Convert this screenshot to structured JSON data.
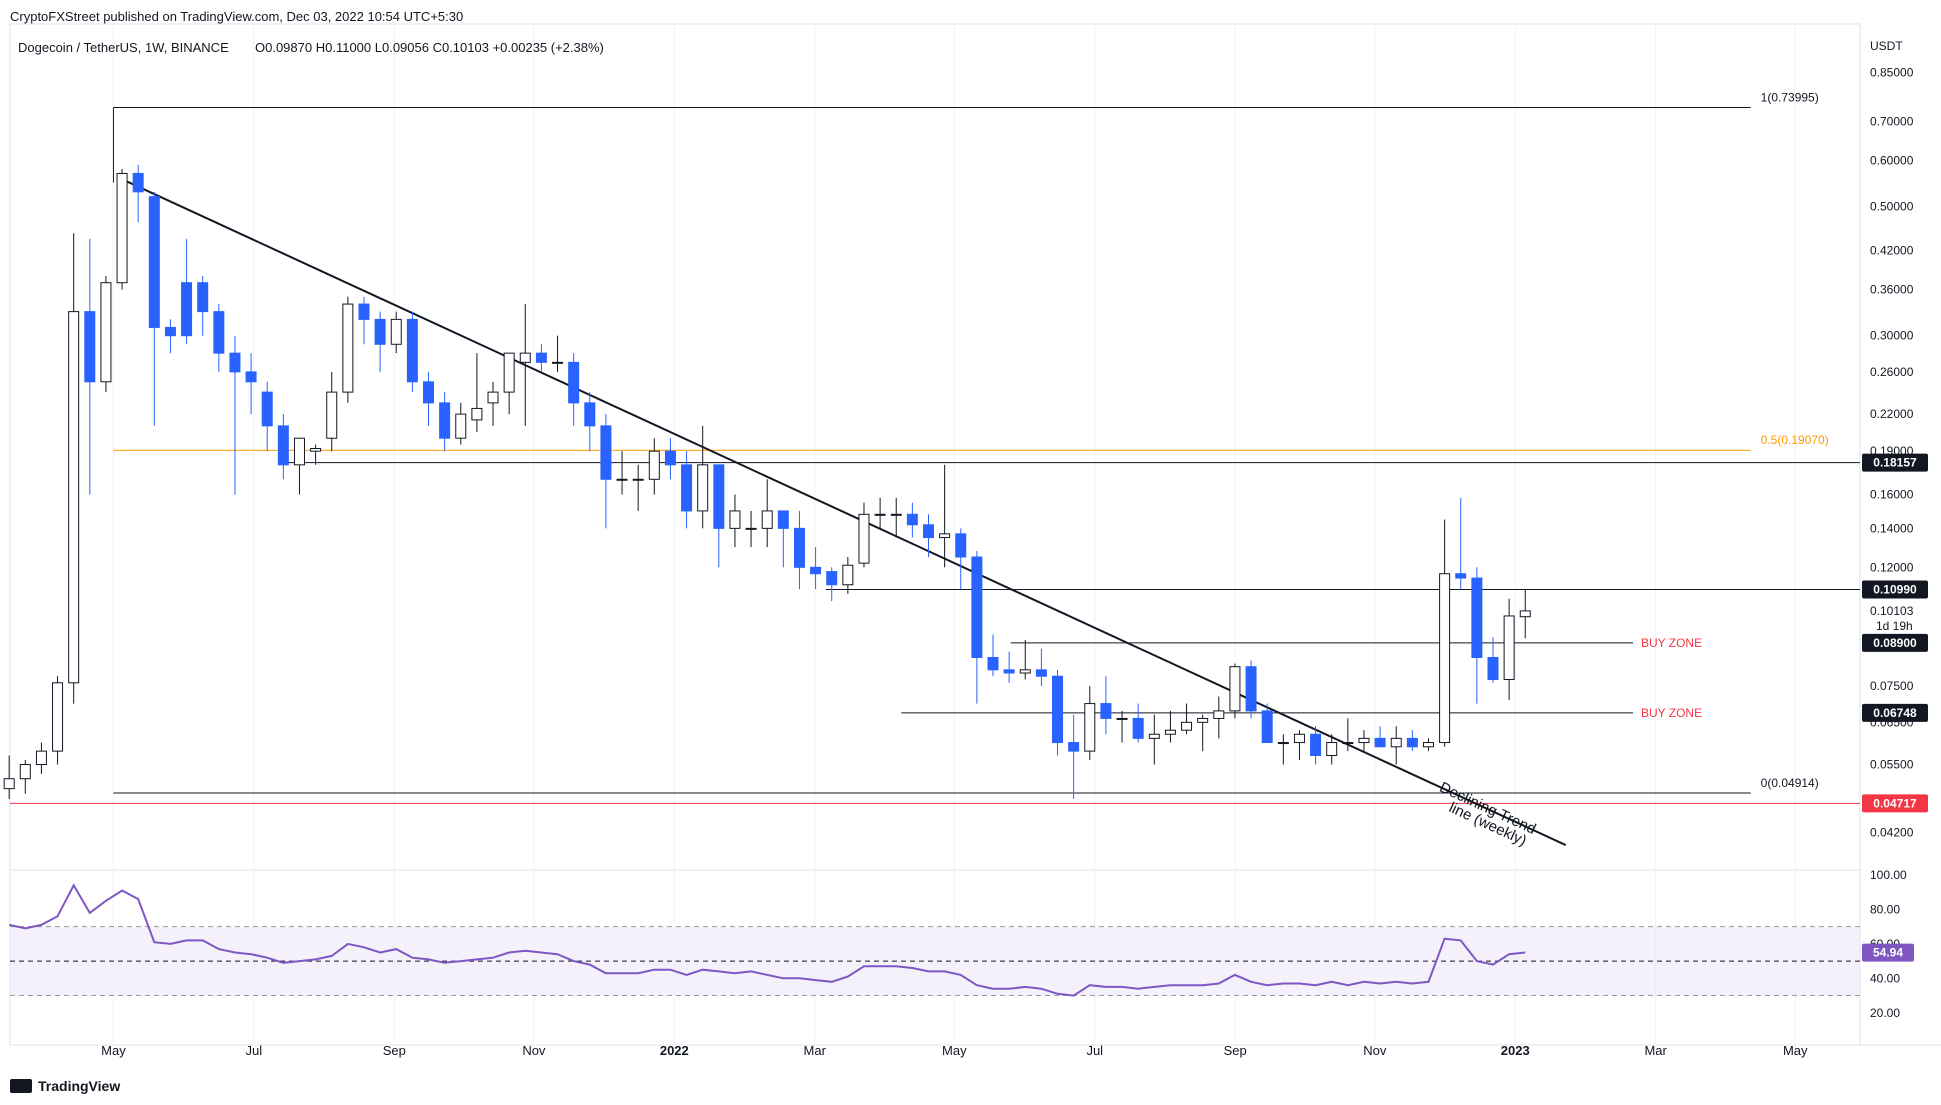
{
  "header": {
    "published": "CryptoFXStreet published on TradingView.com, Dec 03, 2022 10:54 UTC+5:30",
    "symbol": "Dogecoin / TetherUS, 1W, BINANCE",
    "ohlc": "O0.09870 H0.11000 L0.09056 C0.10103 +0.00235 (+2.38%)"
  },
  "footer": {
    "brand": "TradingView"
  },
  "chart_data": {
    "type": "candlestick",
    "currency_label": "USDT",
    "scale": "log",
    "ylim": [
      0.038,
      0.9
    ],
    "price_ticks": [
      "0.85000",
      "0.70000",
      "0.60000",
      "0.50000",
      "0.42000",
      "0.36000",
      "0.30000",
      "0.26000",
      "0.22000",
      "0.19000",
      "0.16000",
      "0.14000",
      "0.12000",
      "0.10103",
      "0.07500",
      "0.06500",
      "0.05500",
      "0.04200"
    ],
    "time_labels": [
      {
        "label": "May",
        "x": 2021.333
      },
      {
        "label": "Jul",
        "x": 2021.5
      },
      {
        "label": "Sep",
        "x": 2021.667
      },
      {
        "label": "Nov",
        "x": 2021.833
      },
      {
        "label": "2022",
        "x": 2022.0
      },
      {
        "label": "Mar",
        "x": 2022.167
      },
      {
        "label": "May",
        "x": 2022.333
      },
      {
        "label": "Jul",
        "x": 2022.5
      },
      {
        "label": "Sep",
        "x": 2022.667
      },
      {
        "label": "Nov",
        "x": 2022.833
      },
      {
        "label": "2023",
        "x": 2023.0
      },
      {
        "label": "Mar",
        "x": 2023.167
      },
      {
        "label": "May",
        "x": 2023.333
      }
    ],
    "xlim": [
      2021.21,
      2023.41
    ],
    "candles": {
      "start": 2021.209,
      "step": 0.01918,
      "ohlc": [
        [
          0.05,
          0.057,
          0.048,
          0.052
        ],
        [
          0.052,
          0.056,
          0.049,
          0.055
        ],
        [
          0.055,
          0.06,
          0.053,
          0.058
        ],
        [
          0.058,
          0.078,
          0.055,
          0.076
        ],
        [
          0.076,
          0.45,
          0.07,
          0.33
        ],
        [
          0.33,
          0.44,
          0.16,
          0.25
        ],
        [
          0.25,
          0.38,
          0.24,
          0.37
        ],
        [
          0.37,
          0.58,
          0.36,
          0.57
        ],
        [
          0.57,
          0.59,
          0.47,
          0.53
        ],
        [
          0.52,
          0.53,
          0.21,
          0.31
        ],
        [
          0.31,
          0.32,
          0.28,
          0.3
        ],
        [
          0.37,
          0.44,
          0.29,
          0.3
        ],
        [
          0.37,
          0.38,
          0.3,
          0.33
        ],
        [
          0.33,
          0.34,
          0.26,
          0.28
        ],
        [
          0.28,
          0.3,
          0.16,
          0.26
        ],
        [
          0.26,
          0.28,
          0.22,
          0.25
        ],
        [
          0.24,
          0.25,
          0.19,
          0.21
        ],
        [
          0.21,
          0.22,
          0.17,
          0.18
        ],
        [
          0.18,
          0.2,
          0.16,
          0.2
        ],
        [
          0.19,
          0.195,
          0.18,
          0.192
        ],
        [
          0.2,
          0.26,
          0.19,
          0.24
        ],
        [
          0.24,
          0.35,
          0.23,
          0.34
        ],
        [
          0.34,
          0.35,
          0.29,
          0.32
        ],
        [
          0.32,
          0.33,
          0.26,
          0.29
        ],
        [
          0.29,
          0.33,
          0.28,
          0.32
        ],
        [
          0.32,
          0.33,
          0.24,
          0.25
        ],
        [
          0.25,
          0.26,
          0.21,
          0.23
        ],
        [
          0.23,
          0.24,
          0.19,
          0.2
        ],
        [
          0.2,
          0.23,
          0.195,
          0.22
        ],
        [
          0.215,
          0.28,
          0.205,
          0.225
        ],
        [
          0.23,
          0.25,
          0.21,
          0.24
        ],
        [
          0.24,
          0.28,
          0.22,
          0.28
        ],
        [
          0.27,
          0.34,
          0.21,
          0.28
        ],
        [
          0.28,
          0.29,
          0.26,
          0.27
        ],
        [
          0.27,
          0.3,
          0.26,
          0.27
        ],
        [
          0.27,
          0.28,
          0.21,
          0.23
        ],
        [
          0.23,
          0.24,
          0.19,
          0.21
        ],
        [
          0.21,
          0.22,
          0.14,
          0.17
        ],
        [
          0.17,
          0.19,
          0.16,
          0.17
        ],
        [
          0.17,
          0.18,
          0.15,
          0.17
        ],
        [
          0.17,
          0.2,
          0.16,
          0.19
        ],
        [
          0.19,
          0.2,
          0.17,
          0.18
        ],
        [
          0.18,
          0.19,
          0.14,
          0.15
        ],
        [
          0.15,
          0.21,
          0.14,
          0.18
        ],
        [
          0.18,
          0.18,
          0.12,
          0.14
        ],
        [
          0.14,
          0.16,
          0.13,
          0.15
        ],
        [
          0.14,
          0.15,
          0.13,
          0.14
        ],
        [
          0.14,
          0.17,
          0.13,
          0.15
        ],
        [
          0.15,
          0.15,
          0.12,
          0.14
        ],
        [
          0.14,
          0.15,
          0.11,
          0.12
        ],
        [
          0.12,
          0.13,
          0.11,
          0.117
        ],
        [
          0.118,
          0.12,
          0.105,
          0.112
        ],
        [
          0.112,
          0.125,
          0.108,
          0.121
        ],
        [
          0.122,
          0.155,
          0.12,
          0.148
        ],
        [
          0.148,
          0.158,
          0.14,
          0.148
        ],
        [
          0.148,
          0.158,
          0.135,
          0.148
        ],
        [
          0.148,
          0.155,
          0.135,
          0.142
        ],
        [
          0.142,
          0.148,
          0.125,
          0.135
        ],
        [
          0.135,
          0.18,
          0.12,
          0.137
        ],
        [
          0.137,
          0.14,
          0.11,
          0.125
        ],
        [
          0.125,
          0.128,
          0.07,
          0.084
        ],
        [
          0.084,
          0.092,
          0.078,
          0.08
        ],
        [
          0.08,
          0.086,
          0.076,
          0.079
        ],
        [
          0.079,
          0.09,
          0.077,
          0.08
        ],
        [
          0.08,
          0.087,
          0.075,
          0.078
        ],
        [
          0.078,
          0.08,
          0.057,
          0.06
        ],
        [
          0.06,
          0.067,
          0.048,
          0.058
        ],
        [
          0.058,
          0.075,
          0.056,
          0.07
        ],
        [
          0.07,
          0.078,
          0.062,
          0.066
        ],
        [
          0.066,
          0.068,
          0.06,
          0.066
        ],
        [
          0.066,
          0.07,
          0.06,
          0.061
        ],
        [
          0.061,
          0.067,
          0.055,
          0.062
        ],
        [
          0.062,
          0.068,
          0.06,
          0.063
        ],
        [
          0.063,
          0.07,
          0.062,
          0.065
        ],
        [
          0.065,
          0.067,
          0.058,
          0.066
        ],
        [
          0.066,
          0.072,
          0.061,
          0.068
        ],
        [
          0.068,
          0.082,
          0.066,
          0.081
        ],
        [
          0.081,
          0.083,
          0.066,
          0.068
        ],
        [
          0.068,
          0.07,
          0.06,
          0.06
        ],
        [
          0.06,
          0.062,
          0.055,
          0.06
        ],
        [
          0.06,
          0.063,
          0.056,
          0.062
        ],
        [
          0.062,
          0.064,
          0.055,
          0.057
        ],
        [
          0.057,
          0.062,
          0.055,
          0.06
        ],
        [
          0.06,
          0.066,
          0.058,
          0.06
        ],
        [
          0.06,
          0.063,
          0.058,
          0.061
        ],
        [
          0.061,
          0.064,
          0.059,
          0.059
        ],
        [
          0.059,
          0.064,
          0.055,
          0.061
        ],
        [
          0.061,
          0.063,
          0.058,
          0.059
        ],
        [
          0.059,
          0.061,
          0.058,
          0.06
        ],
        [
          0.06,
          0.145,
          0.059,
          0.117
        ],
        [
          0.117,
          0.158,
          0.11,
          0.115
        ],
        [
          0.115,
          0.12,
          0.07,
          0.084
        ],
        [
          0.084,
          0.091,
          0.076,
          0.077
        ],
        [
          0.077,
          0.106,
          0.071,
          0.099
        ],
        [
          0.0987,
          0.11,
          0.0906,
          0.101
        ]
      ]
    },
    "horizontal_lines": [
      {
        "price": 0.73995,
        "x1": 2021.333,
        "x2": 2023.28,
        "label": "1(0.73995)",
        "color": "#131722"
      },
      {
        "price": 0.1907,
        "x1": 2021.333,
        "x2": 2023.28,
        "label": "0.5(0.19070)",
        "color": "#ff9800"
      },
      {
        "price": 0.18157,
        "x1": 2021.54,
        "x2": 2023.41,
        "label": "",
        "color": "#131722"
      },
      {
        "price": 0.1099,
        "x1": 2022.18,
        "x2": 2023.41,
        "label": "",
        "color": "#131722"
      },
      {
        "price": 0.089,
        "x1": 2022.4,
        "x2": 2023.14,
        "label": "BUY ZONE",
        "color": "#131722"
      },
      {
        "price": 0.06748,
        "x1": 2022.27,
        "x2": 2023.14,
        "label": "BUY ZONE",
        "color": "#131722"
      },
      {
        "price": 0.04914,
        "x1": 2021.333,
        "x2": 2023.28,
        "label": "0(0.04914)",
        "color": "#131722"
      },
      {
        "price": 0.04717,
        "x1": 2021.21,
        "x2": 2023.41,
        "label": "",
        "color": "#f23645"
      }
    ],
    "price_badges": [
      {
        "price": 0.18157,
        "text": "0.18157",
        "color": "#131722"
      },
      {
        "price": 0.1099,
        "text": "0.10990",
        "color": "#131722"
      },
      {
        "price": 0.089,
        "text": "0.08900",
        "color": "#131722"
      },
      {
        "price": 0.06748,
        "text": "0.06748",
        "color": "#131722"
      },
      {
        "price": 0.04717,
        "text": "0.04717",
        "color": "#f23645"
      }
    ],
    "countdown": "1d 19h",
    "trendline": {
      "x1": 2021.34,
      "y1": 0.56,
      "x2": 2023.06,
      "y2": 0.04,
      "label": "Declining Trend line (weekly)"
    },
    "rsi": {
      "levels": [
        70,
        50,
        30
      ],
      "ticks": [
        "100.00",
        "80.00",
        "60.00",
        "40.00",
        "20.00"
      ],
      "current": "54.94",
      "values": [
        71,
        69,
        71,
        76,
        94,
        78,
        85,
        91,
        86,
        61,
        60,
        62,
        62,
        57,
        55,
        54,
        52,
        49,
        50,
        51,
        53,
        60,
        58,
        55,
        57,
        52,
        51,
        49,
        50,
        51,
        52,
        55,
        56,
        55,
        54,
        50,
        48,
        43,
        43,
        43,
        45,
        45,
        42,
        45,
        44,
        43,
        44,
        42,
        40,
        40,
        39,
        38,
        41,
        47,
        47,
        47,
        46,
        44,
        44,
        42,
        36,
        34,
        34,
        35,
        34,
        31,
        30,
        36,
        35,
        35,
        34,
        35,
        36,
        36,
        36,
        37,
        42,
        38,
        36,
        37,
        37,
        36,
        38,
        36,
        38,
        37,
        38,
        37,
        38,
        63,
        62,
        50,
        48,
        54,
        55
      ]
    },
    "series": [
      {
        "name": "DOGEUSDT 1W",
        "color_up": "#ffffff",
        "color_down": "#2962ff"
      }
    ]
  }
}
